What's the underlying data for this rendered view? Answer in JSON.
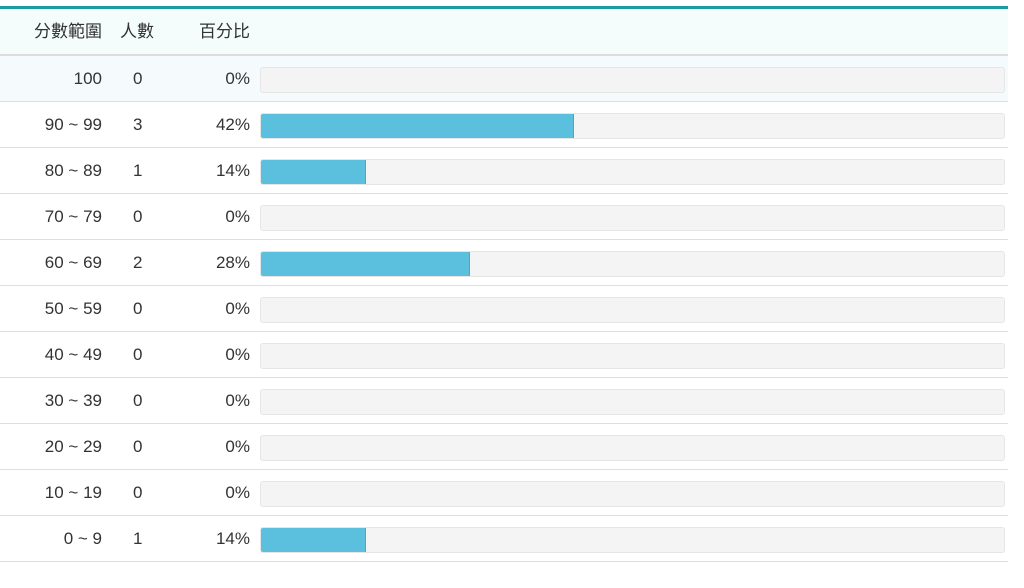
{
  "header": {
    "columns": [
      "分數範圍",
      "人數",
      "百分比"
    ]
  },
  "table": {
    "rows": [
      {
        "range": "100",
        "count": 0,
        "percent": {
          "value": 0,
          "label": "0%"
        }
      },
      {
        "range": "90 ~ 99",
        "count": 3,
        "percent": {
          "value": 42,
          "label": "42%"
        }
      },
      {
        "range": "80 ~ 89",
        "count": 1,
        "percent": {
          "value": 14,
          "label": "14%"
        }
      },
      {
        "range": "70 ~ 79",
        "count": 0,
        "percent": {
          "value": 0,
          "label": "0%"
        }
      },
      {
        "range": "60 ~ 69",
        "count": 2,
        "percent": {
          "value": 28,
          "label": "28%"
        }
      },
      {
        "range": "50 ~ 59",
        "count": 0,
        "percent": {
          "value": 0,
          "label": "0%"
        }
      },
      {
        "range": "40 ~ 49",
        "count": 0,
        "percent": {
          "value": 0,
          "label": "0%"
        }
      },
      {
        "range": "30 ~ 39",
        "count": 0,
        "percent": {
          "value": 0,
          "label": "0%"
        }
      },
      {
        "range": "20 ~ 29",
        "count": 0,
        "percent": {
          "value": 0,
          "label": "0%"
        }
      },
      {
        "range": "10 ~ 19",
        "count": 0,
        "percent": {
          "value": 0,
          "label": "0%"
        }
      },
      {
        "range": "0 ~ 9",
        "count": 1,
        "percent": {
          "value": 14,
          "label": "14%"
        }
      }
    ]
  }
}
